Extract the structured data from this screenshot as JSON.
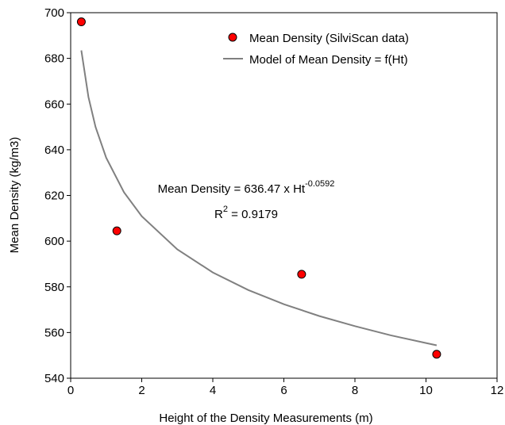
{
  "chart_data": {
    "type": "scatter",
    "x_label": "Height of the Density Measurements (m)",
    "y_label": "Mean Density (kg/m3)",
    "xlim": [
      0,
      12
    ],
    "xticks": [
      0,
      2,
      4,
      6,
      8,
      10,
      12
    ],
    "ylim": [
      540,
      700
    ],
    "yticks": [
      540,
      560,
      580,
      600,
      620,
      640,
      660,
      680,
      700
    ],
    "legend": "upper right",
    "series": [
      {
        "name": "Mean Density (SilviScan data)",
        "type": "scatter",
        "color": "#ff0000",
        "x": [
          0.3,
          1.3,
          6.5,
          10.3
        ],
        "values": [
          696,
          604.5,
          585.5,
          550.5
        ]
      },
      {
        "name": "Model of Mean Density = f(Ht)",
        "type": "line",
        "color": "#808080",
        "x": [
          0.3,
          0.5,
          0.7,
          1,
          1.5,
          2,
          3,
          4,
          5,
          6,
          7,
          8,
          9,
          10,
          10.3
        ],
        "values": [
          683.5,
          663.1,
          650.0,
          636.5,
          621.4,
          610.9,
          596.4,
          586.3,
          578.6,
          572.4,
          567.2,
          562.8,
          558.8,
          555.4,
          554.4
        ]
      }
    ],
    "annotations": [
      {
        "text": "Mean Density = 636.47 x Ht",
        "superscript": "-0.0592"
      },
      {
        "text": "R",
        "superscript": "2",
        "text_after": " = 0.9179"
      }
    ]
  }
}
